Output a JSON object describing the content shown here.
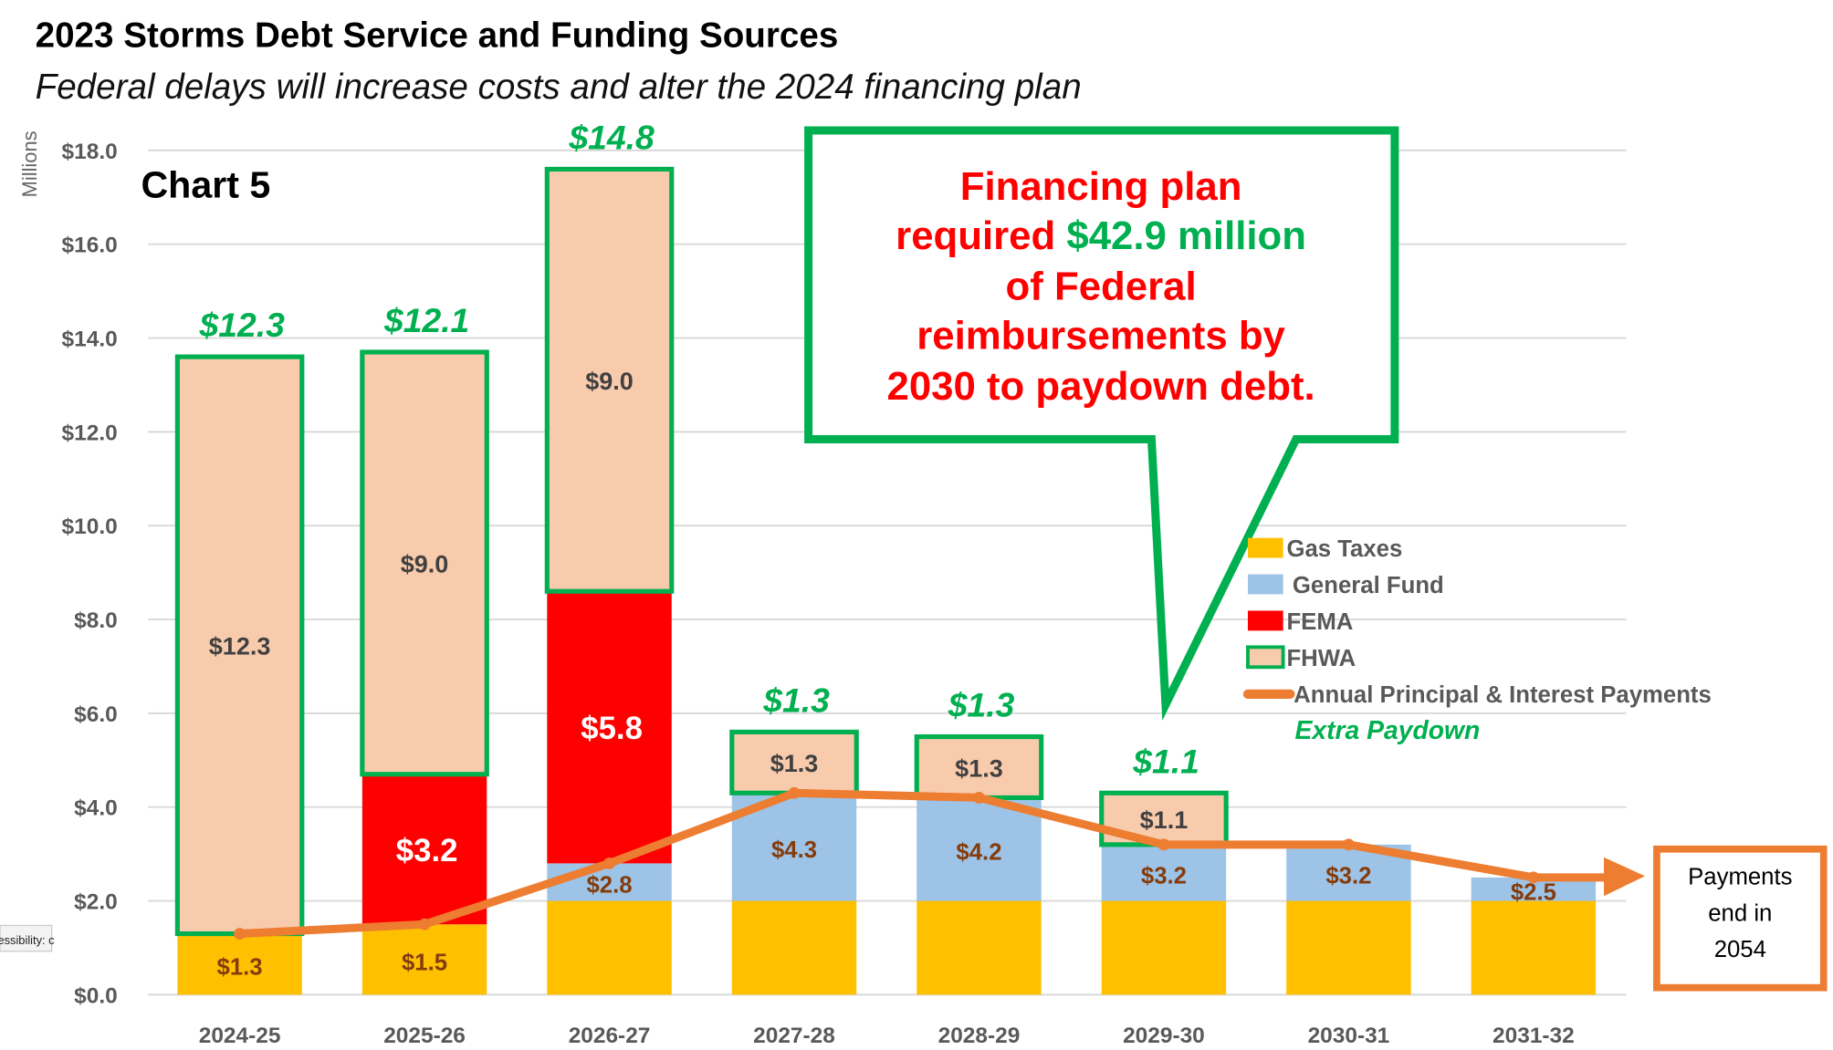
{
  "chart_data": {
    "type": "bar",
    "stacked": true,
    "title": "2023 Storms Debt Service and Funding Sources",
    "subtitle": "Federal delays will increase costs and alter the 2024 financing plan",
    "chart_label": "Chart 5",
    "ylabel": "Millions",
    "ylim": [
      0,
      18
    ],
    "yticks": [
      "$0.0",
      "$2.0",
      "$4.0",
      "$6.0",
      "$8.0",
      "$10.0",
      "$12.0",
      "$14.0",
      "$16.0",
      "$18.0"
    ],
    "grid": true,
    "legend_position": "right",
    "categories": [
      "2024-25",
      "2025-26",
      "2026-27",
      "2027-28",
      "2028-29",
      "2029-30",
      "2030-31",
      "2031-32"
    ],
    "series": [
      {
        "name": "Gas Taxes",
        "color": "#FFC000",
        "values": [
          1.3,
          1.5,
          2.0,
          2.0,
          2.0,
          2.0,
          2.0,
          2.0
        ]
      },
      {
        "name": "General Fund",
        "color": "#9DC3E6",
        "values": [
          0,
          0,
          0.8,
          2.3,
          2.2,
          1.2,
          1.2,
          0.5
        ]
      },
      {
        "name": "FEMA",
        "color": "#FF0000",
        "values": [
          0,
          3.2,
          5.8,
          0,
          0,
          0,
          0,
          0
        ]
      },
      {
        "name": "FHWA",
        "color": "#F8CBAD",
        "border": "#00B050",
        "values": [
          12.3,
          9.0,
          9.0,
          1.3,
          1.3,
          1.1,
          0,
          0
        ]
      }
    ],
    "local_labels": [
      "$1.3",
      "$1.5",
      "$2.8",
      "$4.3",
      "$4.2",
      "$3.2",
      "$3.2",
      "$2.5"
    ],
    "fema_labels": [
      "",
      "$3.2",
      "$5.8",
      "",
      "",
      "",
      "",
      ""
    ],
    "fhwa_labels": [
      "$12.3",
      "$9.0",
      "$9.0",
      "$1.3",
      "$1.3",
      "$1.1",
      "",
      ""
    ],
    "federal_totals": [
      "$12.3",
      "$12.1",
      "$14.8",
      "$1.3",
      "$1.3",
      "$1.1",
      "",
      ""
    ],
    "line": {
      "name": "Annual Principal & Interest Payments",
      "color": "#ED7D31",
      "values": [
        1.3,
        1.5,
        2.8,
        4.3,
        4.2,
        3.2,
        3.2,
        2.5
      ]
    },
    "legend_extra": "Extra Paydown",
    "callout": [
      "Financing plan",
      "required ",
      "$42.9 million",
      "of Federal",
      "reimbursements by",
      "2030 to paydown debt."
    ],
    "end_box": [
      "Payments",
      "end in",
      "2054"
    ],
    "accessibility_tag": "essibility: c"
  }
}
